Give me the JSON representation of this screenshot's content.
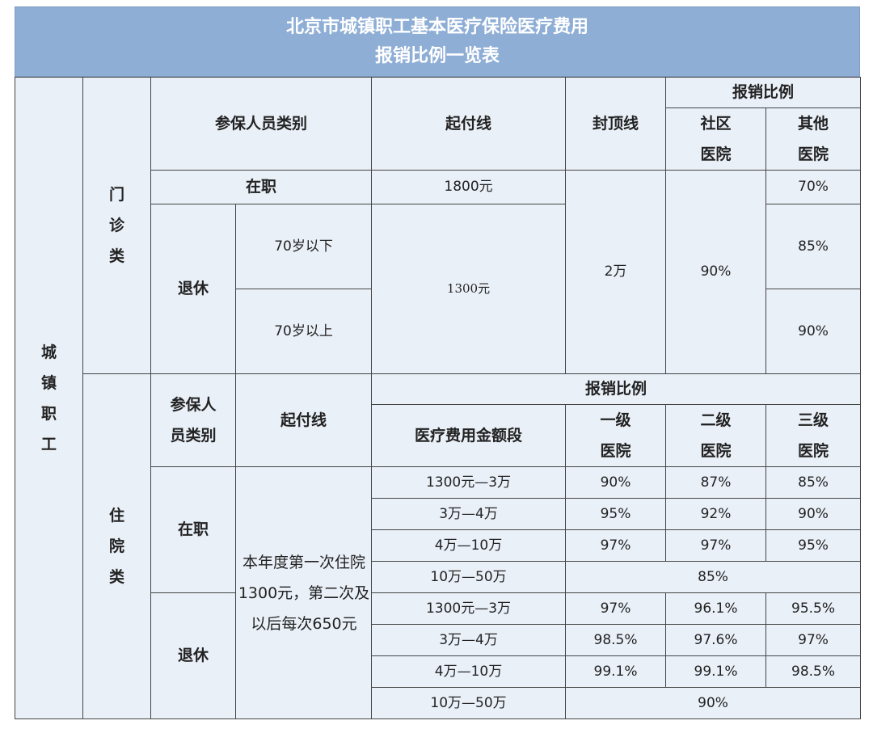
{
  "title": {
    "line1": "北京市城镇职工基本医疗保险医疗费用",
    "line2": "报销比例一览表"
  },
  "row_group": "城镇职工",
  "outpatient": {
    "category": "门诊类",
    "headers": {
      "member_type": "参保人员类别",
      "deductible": "起付线",
      "cap": "封顶线",
      "ratio": "报销比例",
      "community": "社区医院",
      "other": "其他医院"
    },
    "employed": {
      "label": "在职",
      "deductible": "1800元",
      "other": "70%"
    },
    "retired": {
      "label": "退休",
      "deductible": "1300元",
      "under70": {
        "label": "70岁以下",
        "other": "85%"
      },
      "over70": {
        "label": "70岁以上",
        "other": "90%"
      }
    },
    "cap_value": "2万",
    "community_value": "90%"
  },
  "inpatient": {
    "category": "住院类",
    "headers": {
      "member_type": "参保人员类别",
      "deductible": "起付线",
      "ratio": "报销比例",
      "amount_range": "医疗费用金额段",
      "level1": "一级医院",
      "level2": "二级医院",
      "level3": "三级医院"
    },
    "deductible_note": "本年度第一次住院1300元，第二次及以后每次650元",
    "employed": {
      "label": "在职",
      "rows": [
        {
          "range": "1300元—3万",
          "l1": "90%",
          "l2": "87%",
          "l3": "85%"
        },
        {
          "range": "3万—4万",
          "l1": "95%",
          "l2": "92%",
          "l3": "90%"
        },
        {
          "range": "4万—10万",
          "l1": "97%",
          "l2": "97%",
          "l3": "95%"
        },
        {
          "range": "10万—50万",
          "all": "85%"
        }
      ]
    },
    "retired": {
      "label": "退休",
      "rows": [
        {
          "range": "1300元—3万",
          "l1": "97%",
          "l2": "96.1%",
          "l3": "95.5%"
        },
        {
          "range": "3万—4万",
          "l1": "98.5%",
          "l2": "97.6%",
          "l3": "97%"
        },
        {
          "range": "4万—10万",
          "l1": "99.1%",
          "l2": "99.1%",
          "l3": "98.5%"
        },
        {
          "range": "10万—50万",
          "all": "90%"
        }
      ]
    }
  }
}
